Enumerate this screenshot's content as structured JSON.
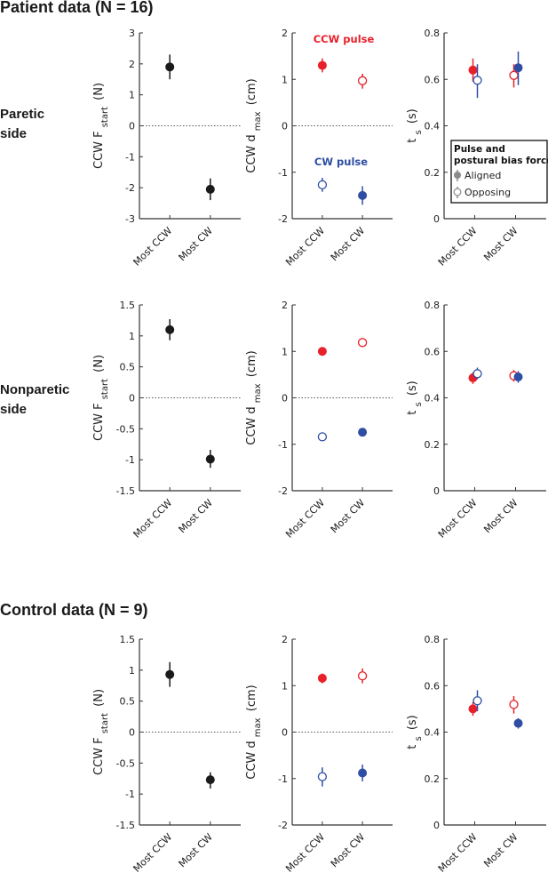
{
  "headings": {
    "patient": "Patient data (N = 16)",
    "control": "Control data (N = 9)"
  },
  "row_labels": [
    {
      "line1": "Paretic",
      "line2": "side"
    },
    {
      "line1": "Nonparetic",
      "line2": "side"
    }
  ],
  "colors": {
    "ccw_pulse": "#e8202a",
    "cw_pulse": "#2f4ea3",
    "single": "#1a1a1a",
    "legend_marker": "#8c8c8c"
  },
  "annotations": {
    "ccw_pulse": "CCW pulse",
    "cw_pulse": "CW pulse"
  },
  "legend": {
    "title_line1": "Pulse and",
    "title_line2": "postural bias force",
    "aligned": "Aligned",
    "opposing": "Opposing",
    "placement": "lower-right of row 1, column 3"
  },
  "chart_data": [
    {
      "type": "scatter",
      "row": "Patient data, Paretic side",
      "ylabel": {
        "main": "CCW F",
        "sub": "start",
        "unit": "(N)"
      },
      "categories": [
        "Most CCW",
        "Most CW"
      ],
      "ylim": [
        -3,
        3
      ],
      "ticks": [
        3,
        2,
        1,
        0,
        -1,
        -2,
        -3
      ],
      "zero_line": true,
      "series": [
        {
          "color": "single",
          "filled": true,
          "points": [
            {
              "cat": 0,
              "y": 1.9,
              "lo": 1.5,
              "hi": 2.3
            },
            {
              "cat": 1,
              "y": -2.05,
              "lo": -2.4,
              "hi": -1.7
            }
          ]
        }
      ]
    },
    {
      "type": "scatter",
      "row": "Patient data, Paretic side",
      "ylabel": {
        "main": "CCW d",
        "sub": "max",
        "unit": "(cm)"
      },
      "categories": [
        "Most CCW",
        "Most CW"
      ],
      "ylim": [
        -2,
        2
      ],
      "ticks": [
        2,
        1,
        0,
        -1,
        -2
      ],
      "zero_line": true,
      "series": [
        {
          "color": "ccw_pulse",
          "points": [
            {
              "cat": 0,
              "filled": true,
              "y": 1.3,
              "lo": 1.15,
              "hi": 1.45
            },
            {
              "cat": 1,
              "filled": false,
              "y": 0.97,
              "lo": 0.8,
              "hi": 1.12
            }
          ]
        },
        {
          "color": "cw_pulse",
          "points": [
            {
              "cat": 0,
              "filled": false,
              "y": -1.27,
              "lo": -1.42,
              "hi": -1.12
            },
            {
              "cat": 1,
              "filled": true,
              "y": -1.5,
              "lo": -1.7,
              "hi": -1.3
            }
          ]
        }
      ]
    },
    {
      "type": "scatter",
      "row": "Patient data, Paretic side",
      "ylabel": {
        "main": "t",
        "sub": "s",
        "unit": "(s)"
      },
      "categories": [
        "Most CCW",
        "Most CW"
      ],
      "ylim": [
        0,
        0.8
      ],
      "ticks": [
        0.8,
        0.6,
        0.4,
        0.2,
        0
      ],
      "zero_line": false,
      "series": [
        {
          "color": "ccw_pulse",
          "points": [
            {
              "cat": 0,
              "filled": true,
              "y": 0.64,
              "lo": 0.59,
              "hi": 0.69
            },
            {
              "cat": 1,
              "filled": false,
              "y": 0.617,
              "lo": 0.565,
              "hi": 0.665
            }
          ]
        },
        {
          "color": "cw_pulse",
          "points": [
            {
              "cat": 0,
              "filled": false,
              "y": 0.596,
              "lo": 0.52,
              "hi": 0.665
            },
            {
              "cat": 1,
              "filled": true,
              "y": 0.65,
              "lo": 0.575,
              "hi": 0.72
            }
          ]
        }
      ]
    },
    {
      "type": "scatter",
      "row": "Patient data, Nonparetic side",
      "ylabel": {
        "main": "CCW F",
        "sub": "start",
        "unit": "(N)"
      },
      "categories": [
        "Most CCW",
        "Most CW"
      ],
      "ylim": [
        -1.5,
        1.5
      ],
      "ticks": [
        1.5,
        1,
        0.5,
        0,
        -0.5,
        -1,
        -1.5
      ],
      "zero_line": true,
      "series": [
        {
          "color": "single",
          "filled": true,
          "points": [
            {
              "cat": 0,
              "y": 1.1,
              "lo": 0.93,
              "hi": 1.27
            },
            {
              "cat": 1,
              "y": -0.99,
              "lo": -1.13,
              "hi": -0.84
            }
          ]
        }
      ]
    },
    {
      "type": "scatter",
      "row": "Patient data, Nonparetic side",
      "ylabel": {
        "main": "CCW d",
        "sub": "max",
        "unit": "(cm)"
      },
      "categories": [
        "Most CCW",
        "Most CW"
      ],
      "ylim": [
        -2,
        2
      ],
      "ticks": [
        2,
        1,
        0,
        -1,
        -2
      ],
      "zero_line": true,
      "series": [
        {
          "color": "ccw_pulse",
          "points": [
            {
              "cat": 0,
              "filled": true,
              "y": 1.0,
              "lo": 0.95,
              "hi": 1.05
            },
            {
              "cat": 1,
              "filled": false,
              "y": 1.19,
              "lo": 1.1,
              "hi": 1.27
            }
          ]
        },
        {
          "color": "cw_pulse",
          "points": [
            {
              "cat": 0,
              "filled": false,
              "y": -0.84,
              "lo": -0.93,
              "hi": -0.76
            },
            {
              "cat": 1,
              "filled": true,
              "y": -0.74,
              "lo": -0.79,
              "hi": -0.69
            }
          ]
        }
      ]
    },
    {
      "type": "scatter",
      "row": "Patient data, Nonparetic side",
      "ylabel": {
        "main": "t",
        "sub": "s",
        "unit": "(s)"
      },
      "categories": [
        "Most CCW",
        "Most CW"
      ],
      "ylim": [
        0,
        0.8
      ],
      "ticks": [
        0.8,
        0.6,
        0.4,
        0.2,
        0
      ],
      "zero_line": false,
      "series": [
        {
          "color": "ccw_pulse",
          "points": [
            {
              "cat": 0,
              "filled": true,
              "y": 0.486,
              "lo": 0.46,
              "hi": 0.51
            },
            {
              "cat": 1,
              "filled": false,
              "y": 0.495,
              "lo": 0.47,
              "hi": 0.52
            }
          ]
        },
        {
          "color": "cw_pulse",
          "points": [
            {
              "cat": 0,
              "filled": false,
              "y": 0.504,
              "lo": 0.48,
              "hi": 0.53
            },
            {
              "cat": 1,
              "filled": true,
              "y": 0.49,
              "lo": 0.465,
              "hi": 0.515
            }
          ]
        }
      ]
    },
    {
      "type": "scatter",
      "row": "Control data",
      "ylabel": {
        "main": "CCW F",
        "sub": "start",
        "unit": "(N)"
      },
      "categories": [
        "Most CCW",
        "Most CW"
      ],
      "ylim": [
        -1.5,
        1.5
      ],
      "ticks": [
        1.5,
        1,
        0.5,
        0,
        -0.5,
        -1,
        -1.5
      ],
      "zero_line": true,
      "series": [
        {
          "color": "single",
          "filled": true,
          "points": [
            {
              "cat": 0,
              "y": 0.93,
              "lo": 0.73,
              "hi": 1.13
            },
            {
              "cat": 1,
              "y": -0.77,
              "lo": -0.91,
              "hi": -0.65
            }
          ]
        }
      ]
    },
    {
      "type": "scatter",
      "row": "Control data",
      "ylabel": {
        "main": "CCW d",
        "sub": "max",
        "unit": "(cm)"
      },
      "categories": [
        "Most CCW",
        "Most CW"
      ],
      "ylim": [
        -2,
        2
      ],
      "ticks": [
        2,
        1,
        0,
        -1,
        -2
      ],
      "zero_line": true,
      "series": [
        {
          "color": "ccw_pulse",
          "points": [
            {
              "cat": 0,
              "filled": true,
              "y": 1.16,
              "lo": 1.05,
              "hi": 1.26
            },
            {
              "cat": 1,
              "filled": false,
              "y": 1.21,
              "lo": 1.05,
              "hi": 1.37
            }
          ]
        },
        {
          "color": "cw_pulse",
          "points": [
            {
              "cat": 0,
              "filled": false,
              "y": -0.96,
              "lo": -1.17,
              "hi": -0.76
            },
            {
              "cat": 1,
              "filled": true,
              "y": -0.88,
              "lo": -1.06,
              "hi": -0.7
            }
          ]
        }
      ]
    },
    {
      "type": "scatter",
      "row": "Control data",
      "ylabel": {
        "main": "t",
        "sub": "s",
        "unit": "(s)"
      },
      "categories": [
        "Most CCW",
        "Most CW"
      ],
      "ylim": [
        0,
        0.8
      ],
      "ticks": [
        0.8,
        0.6,
        0.4,
        0.2,
        0
      ],
      "zero_line": false,
      "series": [
        {
          "color": "ccw_pulse",
          "points": [
            {
              "cat": 0,
              "filled": true,
              "y": 0.5,
              "lo": 0.47,
              "hi": 0.53
            },
            {
              "cat": 1,
              "filled": false,
              "y": 0.519,
              "lo": 0.48,
              "hi": 0.555
            }
          ]
        },
        {
          "color": "cw_pulse",
          "points": [
            {
              "cat": 0,
              "filled": false,
              "y": 0.535,
              "lo": 0.49,
              "hi": 0.58
            },
            {
              "cat": 1,
              "filled": true,
              "y": 0.438,
              "lo": 0.415,
              "hi": 0.46
            }
          ]
        }
      ]
    }
  ]
}
